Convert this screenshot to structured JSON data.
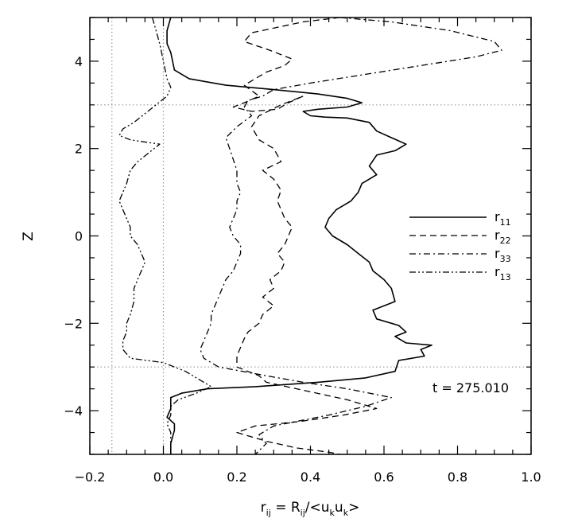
{
  "chart_data": {
    "type": "line",
    "title": "",
    "xlabel": "r",
    "xlabel_sub": "ij",
    "xlabel_eq": " = R",
    "xlabel_sub2": "ij",
    "xlabel_mid": "/<u",
    "xlabel_sub3": "k",
    "xlabel_mid2": "u",
    "xlabel_sub4": "k",
    "xlabel_end": ">",
    "ylabel": "Z",
    "xlim": [
      -0.2,
      1.0
    ],
    "ylim": [
      -5,
      5
    ],
    "xticks": [
      "-0.2",
      "0.0",
      "0.2",
      "0.4",
      "0.6",
      "0.8",
      "1.0"
    ],
    "xtick_values": [
      -0.2,
      0.0,
      0.2,
      0.4,
      0.6,
      0.8,
      1.0
    ],
    "yticks": [
      "-4",
      "-2",
      "0",
      "2",
      "4"
    ],
    "ytick_values": [
      -4,
      -2,
      0,
      2,
      4
    ],
    "reference_lines": {
      "vertical": [
        -0.14,
        0.0
      ],
      "horizontal": [
        3.0,
        -3.0
      ]
    },
    "annotation": "t = 275.010",
    "legend_position": "right",
    "series": [
      {
        "name": "r",
        "sub": "11",
        "style": "solid",
        "points": [
          [
            0.02,
            5.0
          ],
          [
            0.01,
            4.7
          ],
          [
            0.01,
            4.4
          ],
          [
            0.02,
            4.2
          ],
          [
            0.03,
            3.8
          ],
          [
            0.07,
            3.6
          ],
          [
            0.17,
            3.45
          ],
          [
            0.3,
            3.35
          ],
          [
            0.42,
            3.25
          ],
          [
            0.5,
            3.15
          ],
          [
            0.54,
            3.05
          ],
          [
            0.5,
            2.95
          ],
          [
            0.42,
            2.9
          ],
          [
            0.38,
            2.85
          ],
          [
            0.4,
            2.75
          ],
          [
            0.44,
            2.72
          ],
          [
            0.5,
            2.7
          ],
          [
            0.56,
            2.6
          ],
          [
            0.58,
            2.4
          ],
          [
            0.62,
            2.25
          ],
          [
            0.66,
            2.1
          ],
          [
            0.63,
            1.95
          ],
          [
            0.58,
            1.85
          ],
          [
            0.56,
            1.6
          ],
          [
            0.58,
            1.4
          ],
          [
            0.54,
            1.2
          ],
          [
            0.53,
            1.0
          ],
          [
            0.51,
            0.8
          ],
          [
            0.47,
            0.6
          ],
          [
            0.45,
            0.4
          ],
          [
            0.44,
            0.2
          ],
          [
            0.46,
            0.0
          ],
          [
            0.5,
            -0.2
          ],
          [
            0.53,
            -0.4
          ],
          [
            0.56,
            -0.6
          ],
          [
            0.57,
            -0.8
          ],
          [
            0.6,
            -1.0
          ],
          [
            0.62,
            -1.2
          ],
          [
            0.63,
            -1.5
          ],
          [
            0.57,
            -1.7
          ],
          [
            0.58,
            -1.9
          ],
          [
            0.64,
            -2.05
          ],
          [
            0.66,
            -2.2
          ],
          [
            0.63,
            -2.3
          ],
          [
            0.66,
            -2.45
          ],
          [
            0.73,
            -2.5
          ],
          [
            0.7,
            -2.6
          ],
          [
            0.71,
            -2.75
          ],
          [
            0.64,
            -2.85
          ],
          [
            0.63,
            -3.1
          ],
          [
            0.55,
            -3.25
          ],
          [
            0.42,
            -3.35
          ],
          [
            0.25,
            -3.45
          ],
          [
            0.12,
            -3.5
          ],
          [
            0.05,
            -3.6
          ],
          [
            0.02,
            -3.7
          ],
          [
            0.02,
            -3.95
          ],
          [
            0.01,
            -4.15
          ],
          [
            0.03,
            -4.3
          ],
          [
            0.03,
            -4.45
          ],
          [
            0.02,
            -4.75
          ],
          [
            0.02,
            -5.0
          ]
        ]
      },
      {
        "name": "r",
        "sub": "22",
        "style": "dashed",
        "points": [
          [
            0.48,
            5.0
          ],
          [
            0.38,
            4.9
          ],
          [
            0.24,
            4.65
          ],
          [
            0.22,
            4.45
          ],
          [
            0.29,
            4.25
          ],
          [
            0.35,
            4.05
          ],
          [
            0.33,
            3.9
          ],
          [
            0.28,
            3.75
          ],
          [
            0.22,
            3.45
          ],
          [
            0.26,
            3.2
          ],
          [
            0.22,
            3.05
          ],
          [
            0.19,
            2.95
          ],
          [
            0.24,
            2.85
          ],
          [
            0.31,
            2.9
          ],
          [
            0.34,
            3.05
          ],
          [
            0.38,
            3.2
          ],
          [
            0.32,
            3.0
          ],
          [
            0.26,
            2.75
          ],
          [
            0.24,
            2.5
          ],
          [
            0.26,
            2.2
          ],
          [
            0.3,
            2.0
          ],
          [
            0.32,
            1.7
          ],
          [
            0.27,
            1.5
          ],
          [
            0.3,
            1.3
          ],
          [
            0.32,
            1.05
          ],
          [
            0.31,
            0.8
          ],
          [
            0.32,
            0.6
          ],
          [
            0.33,
            0.4
          ],
          [
            0.35,
            0.2
          ],
          [
            0.34,
            0.0
          ],
          [
            0.33,
            -0.2
          ],
          [
            0.31,
            -0.4
          ],
          [
            0.33,
            -0.6
          ],
          [
            0.32,
            -0.8
          ],
          [
            0.29,
            -1.0
          ],
          [
            0.3,
            -1.2
          ],
          [
            0.27,
            -1.4
          ],
          [
            0.3,
            -1.6
          ],
          [
            0.27,
            -1.8
          ],
          [
            0.26,
            -2.0
          ],
          [
            0.23,
            -2.2
          ],
          [
            0.22,
            -2.35
          ],
          [
            0.21,
            -2.55
          ],
          [
            0.2,
            -2.75
          ],
          [
            0.2,
            -3.0
          ],
          [
            0.26,
            -3.2
          ],
          [
            0.28,
            -3.35
          ],
          [
            0.39,
            -3.55
          ],
          [
            0.5,
            -3.75
          ],
          [
            0.58,
            -3.95
          ],
          [
            0.49,
            -4.1
          ],
          [
            0.37,
            -4.25
          ],
          [
            0.25,
            -4.35
          ],
          [
            0.2,
            -4.5
          ],
          [
            0.28,
            -4.7
          ],
          [
            0.36,
            -4.85
          ],
          [
            0.45,
            -4.95
          ],
          [
            0.48,
            -5.0
          ]
        ]
      },
      {
        "name": "r",
        "sub": "33",
        "style": "dashdot",
        "points": [
          [
            0.48,
            5.0
          ],
          [
            0.62,
            4.9
          ],
          [
            0.78,
            4.7
          ],
          [
            0.9,
            4.45
          ],
          [
            0.92,
            4.25
          ],
          [
            0.85,
            4.1
          ],
          [
            0.7,
            3.9
          ],
          [
            0.55,
            3.7
          ],
          [
            0.4,
            3.5
          ],
          [
            0.3,
            3.35
          ],
          [
            0.27,
            3.2
          ],
          [
            0.23,
            3.1
          ],
          [
            0.22,
            2.95
          ],
          [
            0.24,
            2.75
          ],
          [
            0.2,
            2.5
          ],
          [
            0.17,
            2.25
          ],
          [
            0.18,
            2.0
          ],
          [
            0.19,
            1.75
          ],
          [
            0.2,
            1.5
          ],
          [
            0.2,
            1.2
          ],
          [
            0.21,
            1.0
          ],
          [
            0.2,
            0.8
          ],
          [
            0.2,
            0.6
          ],
          [
            0.19,
            0.4
          ],
          [
            0.18,
            0.2
          ],
          [
            0.19,
            0.0
          ],
          [
            0.21,
            -0.2
          ],
          [
            0.21,
            -0.4
          ],
          [
            0.2,
            -0.6
          ],
          [
            0.19,
            -0.8
          ],
          [
            0.17,
            -1.0
          ],
          [
            0.16,
            -1.2
          ],
          [
            0.15,
            -1.4
          ],
          [
            0.14,
            -1.6
          ],
          [
            0.13,
            -1.8
          ],
          [
            0.13,
            -2.0
          ],
          [
            0.12,
            -2.2
          ],
          [
            0.11,
            -2.4
          ],
          [
            0.1,
            -2.6
          ],
          [
            0.11,
            -2.8
          ],
          [
            0.15,
            -3.0
          ],
          [
            0.28,
            -3.2
          ],
          [
            0.38,
            -3.35
          ],
          [
            0.5,
            -3.5
          ],
          [
            0.62,
            -3.7
          ],
          [
            0.55,
            -3.9
          ],
          [
            0.45,
            -4.1
          ],
          [
            0.3,
            -4.35
          ],
          [
            0.26,
            -4.55
          ],
          [
            0.28,
            -4.75
          ],
          [
            0.25,
            -5.0
          ]
        ]
      },
      {
        "name": "r",
        "sub": "13",
        "style": "dashdotdot",
        "points": [
          [
            -0.03,
            5.0
          ],
          [
            -0.02,
            4.7
          ],
          [
            -0.01,
            4.4
          ],
          [
            0.0,
            4.0
          ],
          [
            0.01,
            3.6
          ],
          [
            0.02,
            3.4
          ],
          [
            0.01,
            3.2
          ],
          [
            -0.02,
            3.0
          ],
          [
            -0.05,
            2.8
          ],
          [
            -0.08,
            2.6
          ],
          [
            -0.11,
            2.45
          ],
          [
            -0.12,
            2.3
          ],
          [
            -0.09,
            2.2
          ],
          [
            -0.01,
            2.1
          ],
          [
            -0.04,
            1.9
          ],
          [
            -0.07,
            1.7
          ],
          [
            -0.09,
            1.5
          ],
          [
            -0.1,
            1.2
          ],
          [
            -0.11,
            1.0
          ],
          [
            -0.12,
            0.8
          ],
          [
            -0.11,
            0.6
          ],
          [
            -0.1,
            0.4
          ],
          [
            -0.09,
            0.2
          ],
          [
            -0.09,
            0.0
          ],
          [
            -0.07,
            -0.2
          ],
          [
            -0.06,
            -0.4
          ],
          [
            -0.05,
            -0.6
          ],
          [
            -0.06,
            -0.8
          ],
          [
            -0.07,
            -1.0
          ],
          [
            -0.08,
            -1.2
          ],
          [
            -0.08,
            -1.5
          ],
          [
            -0.09,
            -1.8
          ],
          [
            -0.1,
            -2.0
          ],
          [
            -0.1,
            -2.2
          ],
          [
            -0.11,
            -2.4
          ],
          [
            -0.11,
            -2.6
          ],
          [
            -0.09,
            -2.8
          ],
          [
            0.0,
            -2.9
          ],
          [
            0.06,
            -3.1
          ],
          [
            0.1,
            -3.3
          ],
          [
            0.13,
            -3.45
          ],
          [
            0.09,
            -3.6
          ],
          [
            0.04,
            -3.75
          ],
          [
            0.02,
            -3.9
          ],
          [
            0.02,
            -4.1
          ],
          [
            0.01,
            -4.3
          ],
          [
            0.02,
            -4.5
          ],
          [
            0.02,
            -4.7
          ],
          [
            0.02,
            -5.0
          ]
        ]
      }
    ]
  }
}
